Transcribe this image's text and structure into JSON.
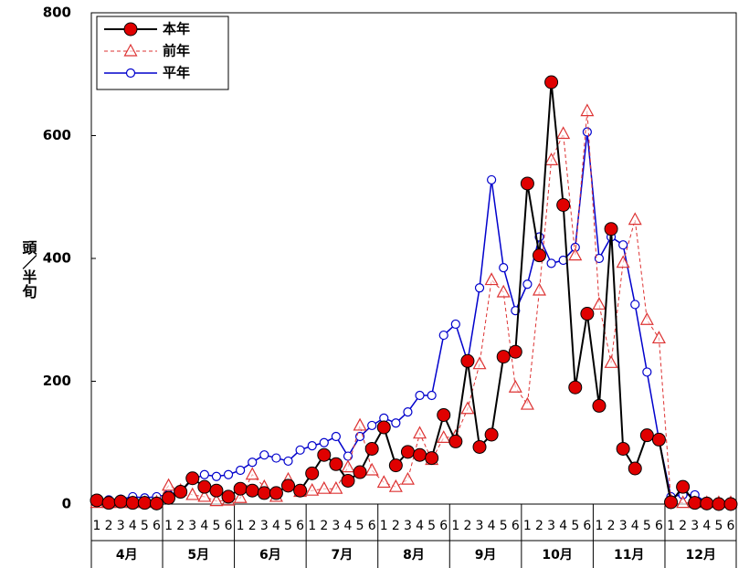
{
  "chart_data": {
    "type": "line",
    "y_label": "頭／半旬",
    "categories": [
      "1",
      "2",
      "3",
      "4",
      "5",
      "6",
      "1",
      "2",
      "3",
      "4",
      "5",
      "6",
      "1",
      "2",
      "3",
      "4",
      "5",
      "6",
      "1",
      "2",
      "3",
      "4",
      "5",
      "6",
      "1",
      "2",
      "3",
      "4",
      "5",
      "6",
      "1",
      "2",
      "3",
      "4",
      "5",
      "6",
      "1",
      "2",
      "3",
      "4",
      "5",
      "6",
      "1",
      "2",
      "3",
      "4",
      "5",
      "6",
      "1",
      "2",
      "3",
      "4",
      "5",
      "6"
    ],
    "x_groups": [
      "4月",
      "5月",
      "6月",
      "7月",
      "8月",
      "9月",
      "10月",
      "11月",
      "12月"
    ],
    "ylim": [
      0,
      800
    ],
    "yticks": [
      0,
      200,
      400,
      600,
      800
    ],
    "grid": false,
    "legend": "upper left",
    "series": [
      {
        "name": "本年",
        "color": "#e00000",
        "values": [
          6,
          2,
          4,
          2,
          2,
          1,
          10,
          20,
          42,
          28,
          22,
          12,
          25,
          22,
          18,
          18,
          30,
          22,
          50,
          80,
          65,
          38,
          52,
          90,
          125,
          63,
          85,
          80,
          75,
          145,
          102,
          233,
          93,
          113,
          240,
          248,
          522,
          405,
          687,
          487,
          190,
          310,
          160,
          448,
          90,
          58,
          112,
          105,
          3,
          28,
          2,
          1,
          0,
          0
        ]
      },
      {
        "name": "前年",
        "color": "#dd3333",
        "values": [
          2,
          2,
          2,
          2,
          2,
          3,
          30,
          22,
          15,
          12,
          5,
          6,
          10,
          48,
          28,
          12,
          40,
          20,
          22,
          25,
          25,
          60,
          128,
          55,
          35,
          28,
          40,
          115,
          72,
          108,
          110,
          155,
          228,
          365,
          345,
          190,
          162,
          348,
          560,
          603,
          405,
          640,
          325,
          230,
          393,
          463,
          300,
          270,
          5,
          2,
          2,
          2,
          2,
          2
        ]
      },
      {
        "name": "平年",
        "color": "#0000cc",
        "values": [
          8,
          7,
          8,
          12,
          10,
          12,
          16,
          20,
          40,
          48,
          45,
          48,
          55,
          68,
          80,
          75,
          70,
          88,
          95,
          100,
          110,
          78,
          110,
          128,
          140,
          132,
          150,
          177,
          177,
          275,
          293,
          232,
          352,
          528,
          385,
          315,
          358,
          435,
          392,
          397,
          418,
          606,
          400,
          435,
          422,
          325,
          215,
          105,
          12,
          15,
          15,
          3,
          3,
          3
        ]
      }
    ]
  }
}
